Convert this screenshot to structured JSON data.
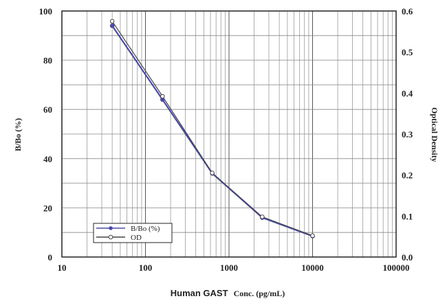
{
  "chart_data": {
    "type": "line",
    "x_scale": "log",
    "x": [
      40,
      160,
      630,
      2500,
      10000
    ],
    "xlim": [
      10,
      100000
    ],
    "xlabel_main": "Human GAST",
    "xlabel_unit": "Conc. (pg/mL)",
    "ylabel": "B/Bo (%)",
    "ylim": [
      0,
      100
    ],
    "y2label": "Optical Density",
    "y2lim": [
      0.0,
      0.6
    ],
    "x_ticks": [
      "10",
      "100",
      "1000",
      "10000",
      "100000"
    ],
    "y_ticks": [
      "0",
      "20",
      "40",
      "60",
      "80",
      "100"
    ],
    "y2_ticks": [
      "0.0",
      "0.1",
      "0.2",
      "0.3",
      "0.4",
      "0.5",
      "0.6"
    ],
    "grid": true,
    "legend_position": "bottom-left",
    "series": [
      {
        "name": "B/Bo (%)",
        "axis": "left",
        "values": [
          94,
          64,
          34,
          16,
          8.5
        ],
        "color": "#4a4aa8",
        "marker": "filled-circle"
      },
      {
        "name": "OD",
        "axis": "right",
        "values": [
          0.575,
          0.392,
          0.205,
          0.098,
          0.052
        ],
        "color": "#444444",
        "marker": "open-circle"
      }
    ]
  }
}
